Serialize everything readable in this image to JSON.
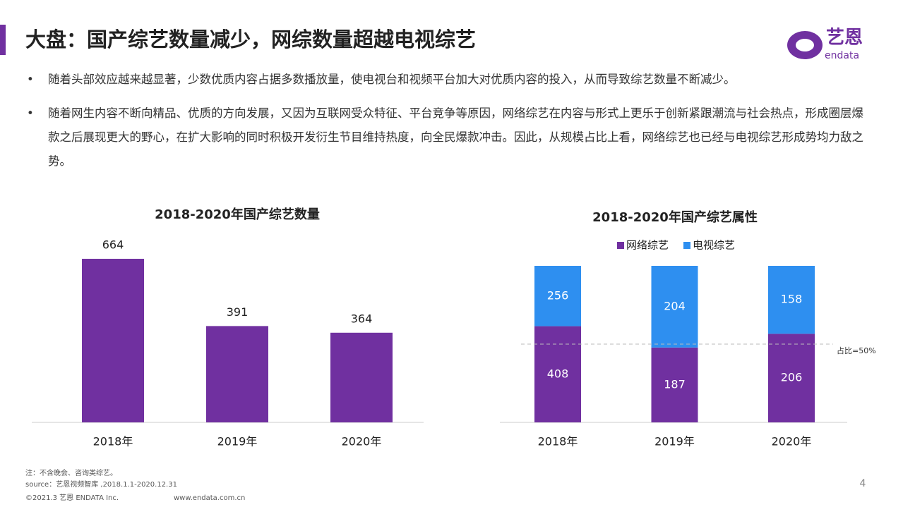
{
  "header": {
    "title": "大盘：国产综艺数量减少，网综数量超越电视综艺",
    "logo_text": "艺恩",
    "logo_sub": "endata"
  },
  "bullets": [
    "随着头部效应越来越显著，少数优质内容占据多数播放量，使电视台和视频平台加大对优质内容的投入，从而导致综艺数量不断减少。",
    "随着网生内容不断向精品、优质的方向发展，又因为互联网受众特征、平台竞争等原因，网络综艺在内容与形式上更乐于创新紧跟潮流与社会热点，形成圈层爆款之后展现更大的野心，在扩大影响的同时积极开发衍生节目维持热度，向全民爆款冲击。因此，从规模占比上看，网络综艺也已经与电视综艺形成势均力敌之势。"
  ],
  "chart_data": [
    {
      "type": "bar",
      "title": "2018-2020年国产综艺数量",
      "categories": [
        "2018年",
        "2019年",
        "2020年"
      ],
      "values": [
        664,
        391,
        364
      ],
      "color": "#7030a0"
    },
    {
      "type": "bar",
      "stack": "percent",
      "title": "2018-2020年国产综艺属性",
      "categories": [
        "2018年",
        "2019年",
        "2020年"
      ],
      "series": [
        {
          "name": "网络综艺",
          "color": "#7030a0",
          "values": [
            408,
            187,
            206
          ]
        },
        {
          "name": "电视综艺",
          "color": "#2e8ff0",
          "values": [
            256,
            204,
            158
          ]
        }
      ],
      "legend": "top",
      "reference_line": {
        "value": 50,
        "label": "占比=50%"
      }
    }
  ],
  "footer": {
    "note": "注：不含晚会、咨询类综艺。",
    "source": "source：艺恩视频智库 ,2018.1.1-2020.12.31",
    "copyright": "©2021.3 艺恩 ENDATA Inc.",
    "site": "www.endata.com.cn",
    "page": "4"
  }
}
